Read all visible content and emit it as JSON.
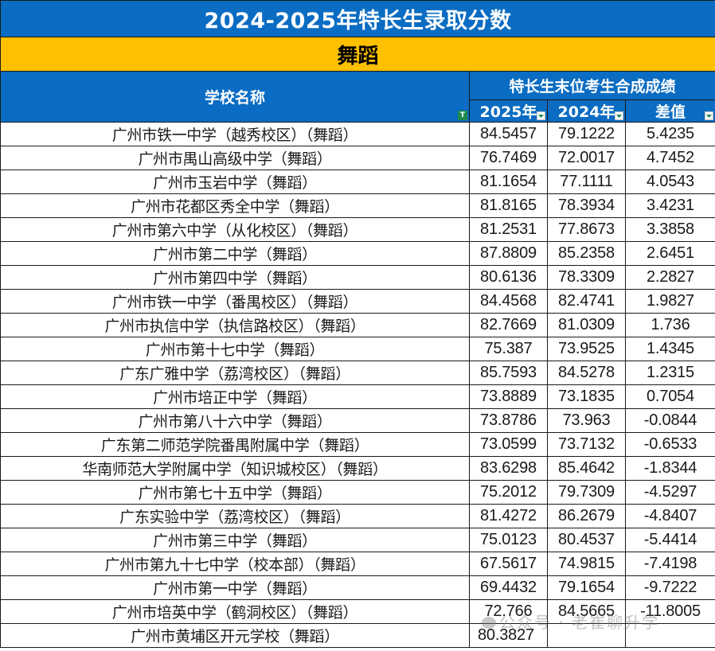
{
  "title": "2024-2025年特长生录取分数",
  "category": "舞蹈",
  "headers": {
    "school_name": "学校名称",
    "group": "特长生末位考生合成成绩",
    "col_2025": "2025年",
    "col_2024": "2024年",
    "col_diff": "差值"
  },
  "colors": {
    "header_blue": "#0a6cc2",
    "category_yellow": "#ffc000",
    "filter_green": "#1e8a4e"
  },
  "rows": [
    {
      "name": "广州市铁一中学（越秀校区）（舞蹈）",
      "y2025": "84.5457",
      "y2024": "79.1222",
      "diff": "5.4235"
    },
    {
      "name": "广州市禺山高级中学（舞蹈）",
      "y2025": "76.7469",
      "y2024": "72.0017",
      "diff": "4.7452"
    },
    {
      "name": "广州市玉岩中学（舞蹈）",
      "y2025": "81.1654",
      "y2024": "77.1111",
      "diff": "4.0543"
    },
    {
      "name": "广州市花都区秀全中学（舞蹈）",
      "y2025": "81.8165",
      "y2024": "78.3934",
      "diff": "3.4231"
    },
    {
      "name": "广州市第六中学（从化校区）（舞蹈）",
      "y2025": "81.2531",
      "y2024": "77.8673",
      "diff": "3.3858"
    },
    {
      "name": "广州市第二中学（舞蹈）",
      "y2025": "87.8809",
      "y2024": "85.2358",
      "diff": "2.6451"
    },
    {
      "name": "广州市第四中学（舞蹈）",
      "y2025": "80.6136",
      "y2024": "78.3309",
      "diff": "2.2827"
    },
    {
      "name": "广州市铁一中学（番禺校区）（舞蹈）",
      "y2025": "84.4568",
      "y2024": "82.4741",
      "diff": "1.9827"
    },
    {
      "name": "广州市执信中学（执信路校区）（舞蹈）",
      "y2025": "82.7669",
      "y2024": "81.0309",
      "diff": "1.736"
    },
    {
      "name": "广州市第十七中学（舞蹈）",
      "y2025": "75.387",
      "y2024": "73.9525",
      "diff": "1.4345"
    },
    {
      "name": "广东广雅中学（荔湾校区）（舞蹈）",
      "y2025": "85.7593",
      "y2024": "84.5278",
      "diff": "1.2315"
    },
    {
      "name": "广州市培正中学（舞蹈）",
      "y2025": "73.8889",
      "y2024": "73.1835",
      "diff": "0.7054"
    },
    {
      "name": "广州市第八十六中学（舞蹈）",
      "y2025": "73.8786",
      "y2024": "73.963",
      "diff": "-0.0844"
    },
    {
      "name": "广东第二师范学院番禺附属中学（舞蹈）",
      "y2025": "73.0599",
      "y2024": "73.7132",
      "diff": "-0.6533"
    },
    {
      "name": "华南师范大学附属中学（知识城校区）（舞蹈）",
      "y2025": "83.6298",
      "y2024": "85.4642",
      "diff": "-1.8344"
    },
    {
      "name": "广州市第七十五中学（舞蹈）",
      "y2025": "75.2012",
      "y2024": "79.7309",
      "diff": "-4.5297"
    },
    {
      "name": "广东实验中学（荔湾校区）（舞蹈）",
      "y2025": "81.4272",
      "y2024": "86.2679",
      "diff": "-4.8407"
    },
    {
      "name": "广州市第三中学（舞蹈）",
      "y2025": "75.0123",
      "y2024": "80.4537",
      "diff": "-5.4414"
    },
    {
      "name": "广州市第九十七中学（校本部）（舞蹈）",
      "y2025": "67.5617",
      "y2024": "74.9815",
      "diff": "-7.4198"
    },
    {
      "name": "广州市第一中学（舞蹈）",
      "y2025": "69.4432",
      "y2024": "79.1654",
      "diff": "-9.7222"
    },
    {
      "name": "广州市培英中学（鹤洞校区）（舞蹈）",
      "y2025": "72.766",
      "y2024": "84.5665",
      "diff": "-11.8005"
    },
    {
      "name": "广州市黄埔区开元学校（舞蹈）",
      "y2025": "80.3827",
      "y2024": "",
      "diff": ""
    }
  ],
  "watermark": "公众号 · 老崔聊升学"
}
